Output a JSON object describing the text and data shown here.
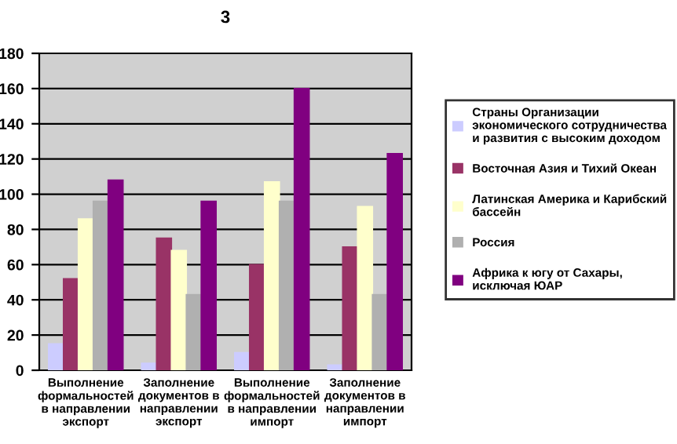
{
  "chart_data": {
    "type": "bar",
    "title": "3",
    "categories": [
      "Выполнение\nформальностей\nв направлении\nэкспорт",
      "Заполнение\nдокументов в\nнаправлении\nэкспорт",
      "Выполнение\nформальностей\nв направлении\nимпорт",
      "Заполнение\nдокументов в\nнаправлении\nимпорт"
    ],
    "series": [
      {
        "name": "Страны Организации\nэкономического сотрудничества\nи развития с высоким доходом",
        "color": "#ccccff",
        "values": [
          15,
          4,
          10,
          3
        ]
      },
      {
        "name": "Восточная Азия и Тихий Океан",
        "color": "#993366",
        "values": [
          52,
          75,
          60,
          70
        ]
      },
      {
        "name": "Латинская Америка и Карибский\nбассейн",
        "color": "#ffffcc",
        "values": [
          86,
          68,
          107,
          93
        ]
      },
      {
        "name": "Россия",
        "color": "#b0b0b0",
        "values": [
          96,
          43,
          96,
          43
        ]
      },
      {
        "name": "Африка к югу от Сахары,\nисключая ЮАР",
        "color": "#800080",
        "values": [
          108,
          96,
          160,
          123
        ]
      }
    ],
    "ylim": [
      0,
      180
    ],
    "yticks": [
      0,
      20,
      40,
      60,
      80,
      100,
      120,
      140,
      160,
      180
    ],
    "grid": "y",
    "legend": "right"
  }
}
